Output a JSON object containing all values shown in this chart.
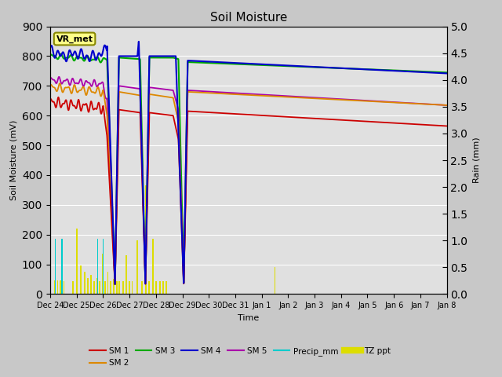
{
  "title": "Soil Moisture",
  "xlabel": "Time",
  "ylabel_left": "Soil Moisture (mV)",
  "ylabel_right": "Rain (mm)",
  "ylim_left": [
    0,
    900
  ],
  "ylim_right": [
    0.0,
    5.0
  ],
  "yticks_left": [
    0,
    100,
    200,
    300,
    400,
    500,
    600,
    700,
    800,
    900
  ],
  "yticks_right": [
    0.0,
    0.5,
    1.0,
    1.5,
    2.0,
    2.5,
    3.0,
    3.5,
    4.0,
    4.5,
    5.0
  ],
  "background_color": "#c8c8c8",
  "plot_bg_color": "#e0e0e0",
  "annotation_box": "VR_met",
  "x_tick_labels": [
    "Dec 24",
    "Dec 25",
    "Dec 26",
    "Dec 27",
    "Dec 28",
    "Dec 29",
    "Dec 30",
    "Dec 31",
    "Jan 1",
    "Jan 2",
    "Jan 3",
    "Jan 4",
    "Jan 5",
    "Jan 6",
    "Jan 7",
    "Jan 8"
  ],
  "colors": {
    "SM 1": "#cc0000",
    "SM 2": "#dd8800",
    "SM 3": "#00aa00",
    "SM 4": "#0000cc",
    "SM 5": "#aa00aa",
    "Precip_mm": "#00cccc",
    "TZ ppt": "#dddd00"
  },
  "n_days": 15,
  "total_points": 3600
}
